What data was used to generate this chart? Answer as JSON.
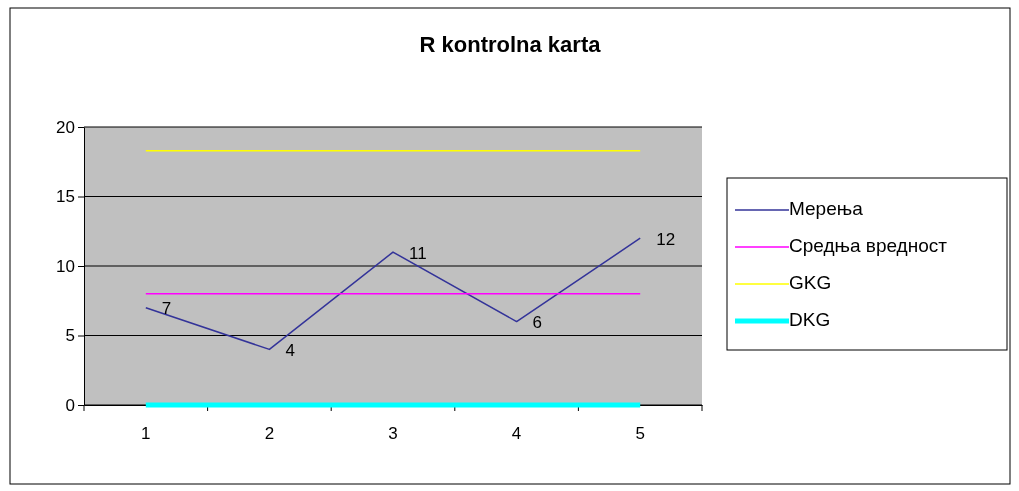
{
  "chart_data": {
    "type": "line",
    "title": "R kontrolna karta",
    "categories": [
      "1",
      "2",
      "3",
      "4",
      "5"
    ],
    "series": [
      {
        "name": "Мерења",
        "color": "#333399",
        "values": [
          7,
          4,
          11,
          6,
          12
        ],
        "value_labels": [
          "7",
          "4",
          "11",
          "6",
          "12"
        ]
      },
      {
        "name": "Средња вредност",
        "color": "#ff00ff",
        "values": [
          8,
          8,
          8,
          8,
          8
        ]
      },
      {
        "name": "GKG",
        "color": "#ffff00",
        "values": [
          18.3,
          18.3,
          18.3,
          18.3,
          18.3
        ]
      },
      {
        "name": "DKG",
        "color": "#00ffff",
        "values": [
          0,
          0,
          0,
          0,
          0
        ]
      }
    ],
    "ylim": [
      0,
      20
    ],
    "yticks": [
      0,
      5,
      10,
      15,
      20
    ],
    "grid": "y",
    "legend": "right",
    "marker": "none",
    "line_style": "solid"
  }
}
